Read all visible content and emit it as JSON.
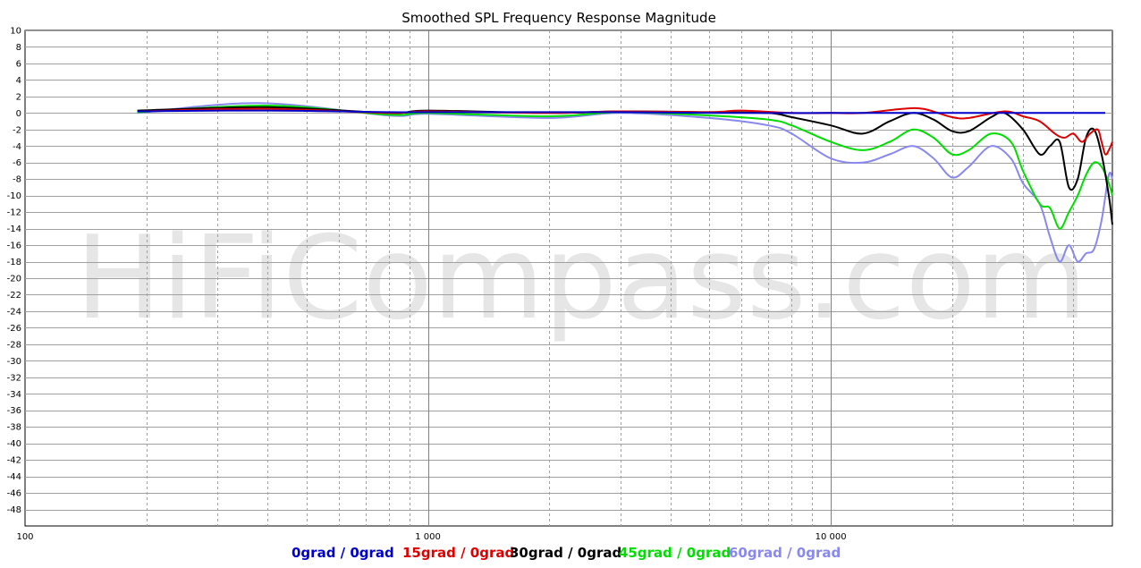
{
  "chart_data": {
    "type": "line",
    "title": "Smoothed SPL Frequency Response Magnitude",
    "watermark": "HiFiCompass.com",
    "xscale": "log",
    "xlim": [
      100,
      50000
    ],
    "ylim": [
      -50,
      10
    ],
    "grid": true,
    "legend_position": "bottom",
    "x_tick_labels": [
      {
        "value": 100,
        "label": "100"
      },
      {
        "value": 1000,
        "label": "1 000"
      },
      {
        "value": 10000,
        "label": "10 000"
      }
    ],
    "y_ticks": [
      10,
      8,
      6,
      4,
      2,
      0,
      -2,
      -4,
      -6,
      -8,
      -10,
      -12,
      -14,
      -16,
      -18,
      -20,
      -22,
      -24,
      -26,
      -28,
      -30,
      -32,
      -34,
      -36,
      -38,
      -40,
      -42,
      -44,
      -46,
      -48
    ],
    "series": [
      {
        "name": "0grad / 0grad",
        "color": "#0000cc",
        "points": [
          [
            190,
            0.2
          ],
          [
            400,
            0.3
          ],
          [
            800,
            0.1
          ],
          [
            1000,
            0.1
          ],
          [
            2000,
            0.1
          ],
          [
            3000,
            0.1
          ],
          [
            5000,
            0.0
          ],
          [
            10000,
            0.0
          ],
          [
            20000,
            0.0
          ],
          [
            30000,
            0.0
          ],
          [
            40000,
            0.0
          ],
          [
            48000,
            0.0
          ]
        ]
      },
      {
        "name": "15grad / 0grad",
        "color": "#dd0000",
        "points": [
          [
            190,
            0.2
          ],
          [
            400,
            0.5
          ],
          [
            800,
            0.0
          ],
          [
            1000,
            0.2
          ],
          [
            2000,
            0.0
          ],
          [
            3000,
            0.2
          ],
          [
            5000,
            0.1
          ],
          [
            6000,
            0.3
          ],
          [
            8000,
            0.0
          ],
          [
            10000,
            0.0
          ],
          [
            12000,
            0.0
          ],
          [
            15000,
            0.5
          ],
          [
            17000,
            0.5
          ],
          [
            20000,
            -0.5
          ],
          [
            22000,
            -0.6
          ],
          [
            27000,
            0.2
          ],
          [
            30000,
            -0.4
          ],
          [
            33000,
            -1.0
          ],
          [
            36000,
            -2.5
          ],
          [
            38000,
            -3.0
          ],
          [
            40000,
            -2.5
          ],
          [
            42000,
            -3.5
          ],
          [
            44000,
            -2.5
          ],
          [
            46000,
            -2.0
          ],
          [
            47000,
            -3.5
          ],
          [
            48000,
            -5.0
          ],
          [
            49000,
            -4.5
          ],
          [
            50000,
            -3.5
          ]
        ]
      },
      {
        "name": "30grad / 0grad",
        "color": "#000000",
        "points": [
          [
            190,
            0.3
          ],
          [
            400,
            0.7
          ],
          [
            800,
            0.0
          ],
          [
            1000,
            0.3
          ],
          [
            2000,
            0.0
          ],
          [
            3000,
            0.2
          ],
          [
            5000,
            0.1
          ],
          [
            7000,
            0.0
          ],
          [
            8000,
            -0.5
          ],
          [
            10000,
            -1.5
          ],
          [
            12000,
            -2.5
          ],
          [
            14000,
            -1.0
          ],
          [
            16000,
            0.0
          ],
          [
            18000,
            -0.8
          ],
          [
            20000,
            -2.2
          ],
          [
            22000,
            -2.2
          ],
          [
            25000,
            -0.5
          ],
          [
            27000,
            0.0
          ],
          [
            30000,
            -2.0
          ],
          [
            33000,
            -5.0
          ],
          [
            35000,
            -4.0
          ],
          [
            37000,
            -3.5
          ],
          [
            39000,
            -9.0
          ],
          [
            41000,
            -8.0
          ],
          [
            43000,
            -3.0
          ],
          [
            45000,
            -2.0
          ],
          [
            47000,
            -5.0
          ],
          [
            49000,
            -10.0
          ],
          [
            50000,
            -13.5
          ]
        ]
      },
      {
        "name": "45grad / 0grad",
        "color": "#00dd00",
        "points": [
          [
            190,
            0.1
          ],
          [
            400,
            0.9
          ],
          [
            800,
            -0.2
          ],
          [
            1000,
            0.0
          ],
          [
            2000,
            -0.4
          ],
          [
            3000,
            0.1
          ],
          [
            5000,
            -0.3
          ],
          [
            7000,
            -0.8
          ],
          [
            8000,
            -1.5
          ],
          [
            10000,
            -3.5
          ],
          [
            12000,
            -4.5
          ],
          [
            14000,
            -3.5
          ],
          [
            16000,
            -2.0
          ],
          [
            18000,
            -3.0
          ],
          [
            20000,
            -5.0
          ],
          [
            22000,
            -4.5
          ],
          [
            25000,
            -2.5
          ],
          [
            28000,
            -3.5
          ],
          [
            30000,
            -7.0
          ],
          [
            33000,
            -11.0
          ],
          [
            35000,
            -11.5
          ],
          [
            37000,
            -14.0
          ],
          [
            39000,
            -12.0
          ],
          [
            41000,
            -10.0
          ],
          [
            43000,
            -7.5
          ],
          [
            45000,
            -6.0
          ],
          [
            47000,
            -6.5
          ],
          [
            49000,
            -8.5
          ],
          [
            50000,
            -10.0
          ]
        ]
      },
      {
        "name": "60grad / 0grad",
        "color": "#8888ee",
        "points": [
          [
            190,
            0.0
          ],
          [
            380,
            1.2
          ],
          [
            800,
            -0.3
          ],
          [
            1000,
            -0.1
          ],
          [
            2000,
            -0.6
          ],
          [
            3000,
            0.0
          ],
          [
            5000,
            -0.6
          ],
          [
            7000,
            -1.5
          ],
          [
            8000,
            -2.5
          ],
          [
            10000,
            -5.5
          ],
          [
            12000,
            -6.0
          ],
          [
            14000,
            -5.0
          ],
          [
            16000,
            -4.0
          ],
          [
            18000,
            -5.5
          ],
          [
            20000,
            -7.8
          ],
          [
            22000,
            -6.5
          ],
          [
            25000,
            -4.0
          ],
          [
            28000,
            -5.5
          ],
          [
            30000,
            -8.5
          ],
          [
            33000,
            -11.0
          ],
          [
            35000,
            -15.0
          ],
          [
            37000,
            -18.0
          ],
          [
            39000,
            -16.0
          ],
          [
            41000,
            -18.0
          ],
          [
            43000,
            -17.0
          ],
          [
            45000,
            -16.5
          ],
          [
            47000,
            -13.0
          ],
          [
            49000,
            -7.5
          ],
          [
            50000,
            -8.0
          ]
        ]
      }
    ]
  }
}
